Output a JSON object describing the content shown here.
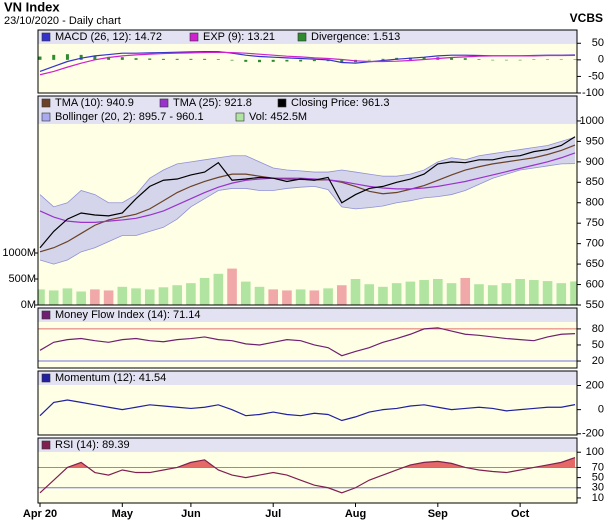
{
  "header": {
    "title": "VN Index",
    "subtitle": "23/10/2020 - Daily chart",
    "brand": "VCBS"
  },
  "chart_data": [
    {
      "type": "line",
      "ylim": [
        -100,
        90
      ],
      "yticks": [
        50,
        0,
        -50,
        -100
      ],
      "series": [
        {
          "name": "MACD (26, 12): 14.72",
          "color": "#3333cc",
          "kind": "line",
          "values": [
            -35,
            -20,
            -5,
            5,
            12,
            16,
            20,
            20,
            21,
            22,
            23,
            24,
            25,
            25,
            20,
            14,
            10,
            8,
            6,
            4,
            2,
            0,
            -8,
            -10,
            -6,
            -2,
            2,
            5,
            8,
            12,
            14,
            14,
            13,
            12,
            12,
            12,
            13,
            14,
            14,
            14.72
          ]
        },
        {
          "name": "EXP (9): 13.21",
          "color": "#d020d0",
          "kind": "line",
          "values": [
            -45,
            -35,
            -22,
            -10,
            0,
            7,
            12,
            15,
            17,
            19,
            20,
            21,
            22,
            23,
            22,
            20,
            17,
            14,
            11,
            9,
            6,
            4,
            1,
            -3,
            -5,
            -5,
            -4,
            -2,
            1,
            4,
            7,
            9,
            11,
            12,
            12,
            12,
            12,
            13,
            13,
            13.21
          ]
        },
        {
          "name": "Divergence: 1.513",
          "color": "#2e8b2e",
          "kind": "bar",
          "values": [
            10,
            15,
            17,
            15,
            12,
            9,
            8,
            5,
            4,
            3,
            3,
            3,
            3,
            2,
            -2,
            -6,
            -7,
            -6,
            -5,
            -5,
            -4,
            -4,
            -9,
            -7,
            -1,
            3,
            6,
            7,
            7,
            8,
            7,
            5,
            2,
            0,
            0,
            0,
            1,
            1,
            1,
            1.513
          ]
        }
      ]
    },
    {
      "type": "line",
      "ylim": [
        550,
        1061
      ],
      "yticks": [
        1000,
        950,
        900,
        850,
        800,
        750,
        700,
        650,
        600,
        550
      ],
      "y2lim": [
        0,
        4019
      ],
      "y2ticks": [
        {
          "value": 0,
          "label": "0M"
        },
        {
          "value": 500,
          "label": "500M"
        },
        {
          "value": 1000,
          "label": "1000M"
        }
      ],
      "series": [
        {
          "name": "TMA (10): 940.9",
          "color": "#6b4226",
          "kind": "line",
          "values": [
            680,
            690,
            705,
            725,
            745,
            758,
            765,
            772,
            785,
            805,
            825,
            840,
            852,
            862,
            870,
            870,
            865,
            860,
            858,
            857,
            856,
            856,
            850,
            840,
            828,
            822,
            825,
            833,
            842,
            855,
            868,
            880,
            888,
            895,
            900,
            905,
            910,
            918,
            928,
            940.9
          ]
        },
        {
          "name": "TMA (25): 921.8",
          "color": "#9933cc",
          "kind": "line",
          "values": [
            780,
            765,
            755,
            752,
            752,
            755,
            758,
            762,
            770,
            780,
            795,
            810,
            825,
            838,
            848,
            855,
            858,
            860,
            860,
            860,
            858,
            856,
            852,
            846,
            840,
            836,
            834,
            834,
            836,
            840,
            846,
            852,
            860,
            868,
            876,
            884,
            892,
            900,
            910,
            921.8
          ]
        },
        {
          "name": "Closing Price: 961.3",
          "color": "#000000",
          "kind": "line",
          "values": [
            690,
            730,
            760,
            775,
            770,
            768,
            775,
            810,
            840,
            855,
            858,
            868,
            875,
            898,
            855,
            858,
            862,
            860,
            852,
            858,
            855,
            862,
            800,
            820,
            835,
            840,
            850,
            858,
            870,
            895,
            900,
            898,
            905,
            905,
            912,
            915,
            925,
            930,
            940,
            961.3
          ]
        },
        {
          "name": "Bollinger (20, 2): 895.7 - 960.1",
          "color": "#aaaaee",
          "kind": "band",
          "upper": [
            820,
            790,
            800,
            830,
            820,
            800,
            800,
            820,
            860,
            880,
            895,
            900,
            905,
            910,
            915,
            915,
            900,
            885,
            880,
            878,
            875,
            875,
            880,
            875,
            870,
            865,
            865,
            870,
            880,
            900,
            910,
            905,
            915,
            920,
            925,
            930,
            935,
            940,
            950,
            960.1
          ],
          "lower": [
            660,
            650,
            660,
            680,
            690,
            705,
            720,
            720,
            730,
            740,
            760,
            790,
            810,
            830,
            835,
            835,
            830,
            830,
            835,
            838,
            840,
            832,
            790,
            785,
            788,
            792,
            800,
            805,
            812,
            815,
            820,
            830,
            845,
            860,
            870,
            880,
            885,
            890,
            895,
            895.7
          ]
        },
        {
          "name": "Vol: 452.5M",
          "color": "#b0e4a0",
          "down_color": "#f0a8a8",
          "color_by_series": 2,
          "kind": "bar",
          "axis": "y2",
          "values": [
            300,
            280,
            320,
            260,
            300,
            280,
            350,
            320,
            300,
            340,
            380,
            420,
            520,
            600,
            700,
            450,
            350,
            300,
            280,
            300,
            280,
            320,
            380,
            500,
            400,
            350,
            420,
            450,
            480,
            500,
            420,
            520,
            400,
            380,
            420,
            500,
            480,
            460,
            420,
            452.5
          ]
        }
      ]
    },
    {
      "type": "line",
      "ylim": [
        7,
        119
      ],
      "yticks": [
        80,
        50,
        20
      ],
      "ref_lines": [
        {
          "tick": 0,
          "color": "#e07070"
        },
        {
          "tick": 2,
          "color": "#7070e0"
        }
      ],
      "fill_above": {
        "tick": 0,
        "color": "#e05050"
      },
      "series": [
        {
          "name": "Money Flow Index (14): 71.14",
          "color": "#702070",
          "kind": "line",
          "values": [
            40,
            55,
            60,
            62,
            58,
            55,
            60,
            62,
            58,
            56,
            60,
            62,
            65,
            60,
            58,
            52,
            50,
            55,
            60,
            58,
            50,
            45,
            30,
            38,
            45,
            55,
            62,
            70,
            80,
            82,
            76,
            70,
            68,
            65,
            62,
            60,
            58,
            65,
            70,
            71.14
          ]
        }
      ]
    },
    {
      "type": "line",
      "ylim": [
        -210,
        320
      ],
      "yticks": [
        200,
        0,
        -200
      ],
      "series": [
        {
          "name": "Momentum (12): 41.54",
          "color": "#2020a0",
          "kind": "line",
          "values": [
            -50,
            60,
            80,
            60,
            40,
            20,
            0,
            20,
            40,
            30,
            20,
            10,
            20,
            40,
            0,
            -50,
            -40,
            -20,
            -40,
            -50,
            -30,
            -40,
            -90,
            -60,
            -20,
            0,
            10,
            30,
            40,
            20,
            0,
            10,
            20,
            10,
            -10,
            0,
            10,
            20,
            20,
            41.54
          ]
        }
      ]
    },
    {
      "type": "line",
      "ylim": [
        0,
        128
      ],
      "yticks": [
        100,
        70,
        50,
        30,
        10
      ],
      "ref_lines": [
        {
          "tick": 1,
          "color": "#e07070"
        },
        {
          "tick": 3,
          "color": "#7070e0"
        }
      ],
      "fill_above": {
        "tick": 1,
        "color": "#e05050"
      },
      "categories": [
        "Apr 20",
        null,
        null,
        null,
        null,
        null,
        "May",
        null,
        null,
        null,
        null,
        "Jun",
        null,
        null,
        null,
        null,
        null,
        "Jul",
        null,
        null,
        null,
        null,
        null,
        "Aug",
        null,
        null,
        null,
        null,
        null,
        "Sep",
        null,
        null,
        null,
        null,
        null,
        "Oct",
        null,
        null,
        null,
        null
      ],
      "series": [
        {
          "name": "RSI (14): 89.39",
          "color": "#802050",
          "kind": "line",
          "values": [
            20,
            45,
            70,
            80,
            60,
            55,
            65,
            60,
            60,
            65,
            70,
            80,
            85,
            65,
            55,
            50,
            55,
            60,
            55,
            45,
            35,
            30,
            20,
            30,
            45,
            55,
            65,
            75,
            80,
            82,
            78,
            70,
            65,
            62,
            60,
            65,
            70,
            75,
            80,
            89.39
          ]
        }
      ]
    }
  ]
}
